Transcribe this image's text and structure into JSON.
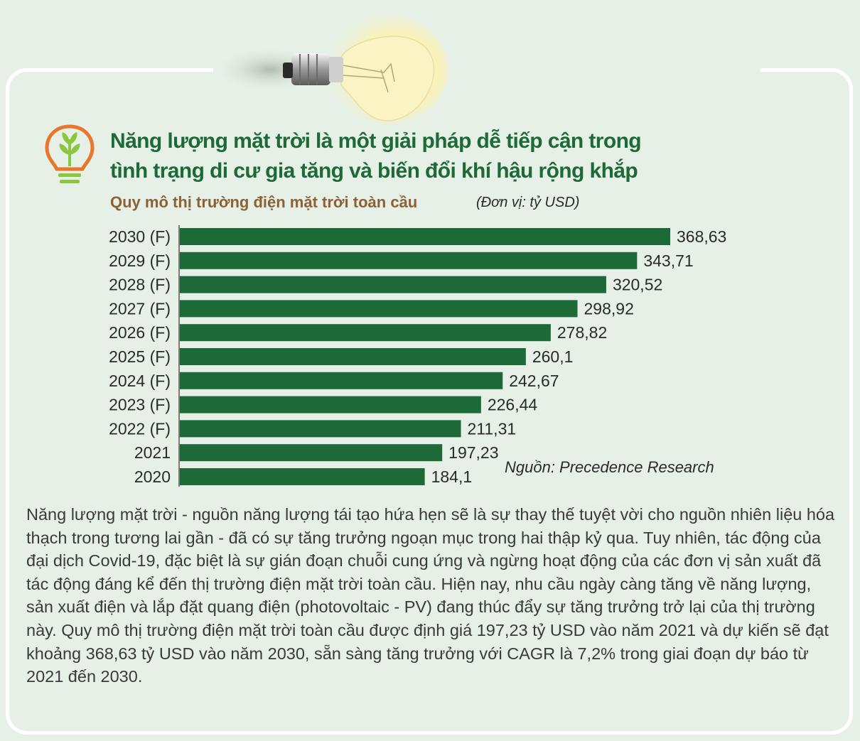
{
  "headline": {
    "line1": "Năng lượng mặt trời là một giải pháp dễ tiếp cận trong",
    "line2": "tình trạng di cư gia tăng và biến đổi khí hậu rộng khắp"
  },
  "subtitle": "Quy mô thị trường điện mặt trời toàn cầu",
  "unit_note": "(Đơn vị: tỷ USD)",
  "source": "Nguồn: Precedence Research",
  "body_text": "Năng lượng mặt trời - nguồn năng lượng tái tạo hứa hẹn sẽ là sự thay thế tuyệt vời cho nguồn nhiên liệu hóa thạch trong tương lai gần - đã có sự tăng trưởng ngoạn mục trong hai thập kỷ qua. Tuy nhiên, tác động của đại dịch Covid-19, đặc biệt là sự gián đoạn chuỗi cung ứng và ngừng hoạt động của các đơn vị sản xuất đã tác động đáng kể đến thị trường điện mặt trời toàn cầu. Hiện nay, nhu cầu ngày càng tăng về năng lượng, sản xuất điện và lắp đặt quang điện (photovoltaic - PV) đang thúc đẩy sự tăng trưởng trở lại của thị trường này. Quy mô thị trường điện mặt trời toàn cầu được định giá 197,23 tỷ USD vào năm 2021 và dự kiến sẽ đạt khoảng 368,63 tỷ USD vào năm 2030, sẵn sàng tăng trưởng với CAGR là 7,2% trong giai đoạn dự báo từ 2021 đến 2030.",
  "colors": {
    "background": "#e6f0e6",
    "bar": "#1d6a38",
    "headline": "#1d6a38",
    "subtitle": "#8d6136",
    "logo_orange": "#e8762b",
    "logo_green": "#8cc63f"
  },
  "icons": [
    "light-bulb-icon",
    "plant-bulb-logo-icon"
  ],
  "chart_data": {
    "type": "bar",
    "orientation": "horizontal",
    "categories": [
      "2030 (F)",
      "2029 (F)",
      "2028 (F)",
      "2027 (F)",
      "2026 (F)",
      "2025 (F)",
      "2024 (F)",
      "2023 (F)",
      "2022 (F)",
      "2021",
      "2020"
    ],
    "values": [
      368.63,
      343.71,
      320.52,
      298.92,
      278.82,
      260.1,
      242.67,
      226.44,
      211.31,
      197.23,
      184.1
    ],
    "value_labels": [
      "368,63",
      "343,71",
      "320,52",
      "298,92",
      "278,82",
      "260,1",
      "242,67",
      "226,44",
      "211,31",
      "197,23",
      "184,1"
    ],
    "title": "Quy mô thị trường điện mặt trời toàn cầu",
    "unit": "tỷ USD",
    "xlim": [
      0,
      368.63
    ],
    "grid": false,
    "legend": "none"
  }
}
